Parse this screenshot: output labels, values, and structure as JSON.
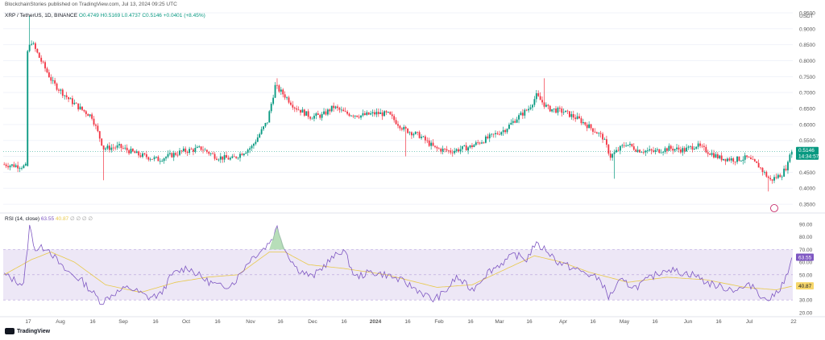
{
  "caption": "BlockchainStories published on TradingView.com, Jul 13, 2024 09:25 UTC",
  "legend": {
    "symbol": "XRP / TetherUS, 1D, BINANCE",
    "open": "O0.4749",
    "high": "H0.5169",
    "low": "L0.4737",
    "close": "C0.5146",
    "change": "+0.0401 (+8.45%)"
  },
  "rsi_legend": {
    "label": "RSI (14, close)",
    "rsi": "63.55",
    "ma": "40.87",
    "extra": "∅ ∅ ∅ ∅"
  },
  "branding": "TradingView",
  "colors": {
    "up": "#089981",
    "down": "#f23645",
    "rsi": "#7e57c2",
    "rsi_ma": "#e8c94a",
    "band": "#ede7f6"
  },
  "chart_data": [
    {
      "type": "candlestick",
      "currency_label": "USDT",
      "ylim": [
        0.33,
        0.96
      ],
      "y_ticks": [
        "0.9500",
        "0.9000",
        "0.8500",
        "0.8000",
        "0.7500",
        "0.7000",
        "0.6500",
        "0.6000",
        "0.5500",
        "0.5000",
        "0.4500",
        "0.4000",
        "0.3500"
      ],
      "last_price_label": "0.5146",
      "countdown_label": "14:34:57",
      "x_ticks": [
        "17",
        "Aug",
        "16",
        "Sep",
        "16",
        "Oct",
        "16",
        "Nov",
        "16",
        "Dec",
        "16",
        "2024",
        "16",
        "Feb",
        "16",
        "Mar",
        "16",
        "Apr",
        "16",
        "May",
        "16",
        "Jun",
        "16",
        "Jul",
        "22"
      ],
      "keypoints": [
        [
          0,
          0.475
        ],
        [
          12,
          0.468
        ],
        [
          13,
          0.83
        ],
        [
          15,
          0.86
        ],
        [
          19,
          0.81
        ],
        [
          26,
          0.73
        ],
        [
          34,
          0.68
        ],
        [
          40,
          0.65
        ],
        [
          46,
          0.625
        ],
        [
          52,
          0.525
        ],
        [
          60,
          0.53
        ],
        [
          70,
          0.505
        ],
        [
          80,
          0.49
        ],
        [
          92,
          0.515
        ],
        [
          102,
          0.525
        ],
        [
          110,
          0.498
        ],
        [
          118,
          0.492
        ],
        [
          128,
          0.53
        ],
        [
          136,
          0.61
        ],
        [
          140,
          0.72
        ],
        [
          145,
          0.69
        ],
        [
          150,
          0.655
        ],
        [
          158,
          0.625
        ],
        [
          164,
          0.628
        ],
        [
          170,
          0.655
        ],
        [
          176,
          0.635
        ],
        [
          184,
          0.628
        ],
        [
          192,
          0.635
        ],
        [
          198,
          0.632
        ],
        [
          206,
          0.585
        ],
        [
          214,
          0.565
        ],
        [
          222,
          0.525
        ],
        [
          230,
          0.516
        ],
        [
          240,
          0.53
        ],
        [
          250,
          0.56
        ],
        [
          258,
          0.585
        ],
        [
          264,
          0.62
        ],
        [
          270,
          0.65
        ],
        [
          274,
          0.69
        ],
        [
          280,
          0.65
        ],
        [
          288,
          0.64
        ],
        [
          296,
          0.615
        ],
        [
          304,
          0.58
        ],
        [
          308,
          0.56
        ],
        [
          312,
          0.5
        ],
        [
          320,
          0.54
        ],
        [
          326,
          0.52
        ],
        [
          334,
          0.515
        ],
        [
          342,
          0.525
        ],
        [
          350,
          0.52
        ],
        [
          356,
          0.535
        ],
        [
          362,
          0.515
        ],
        [
          368,
          0.495
        ],
        [
          376,
          0.49
        ],
        [
          382,
          0.495
        ],
        [
          388,
          0.47
        ],
        [
          394,
          0.425
        ],
        [
          400,
          0.445
        ],
        [
          403,
          0.475
        ],
        [
          404,
          0.5146
        ]
      ],
      "spikes": [
        [
          13,
          "high",
          0.94
        ],
        [
          51,
          "low",
          0.425
        ],
        [
          140,
          "high",
          0.745
        ],
        [
          206,
          "low",
          0.5
        ],
        [
          277,
          "high",
          0.745
        ],
        [
          313,
          "low",
          0.43
        ],
        [
          392,
          "low",
          0.39
        ]
      ]
    },
    {
      "type": "line",
      "title": "RSI (14, close)",
      "ylim": [
        18,
        97
      ],
      "y_ticks": [
        "90.00",
        "80.00",
        "70.00",
        "60.00",
        "50.00",
        "40.00",
        "30.00",
        "20.00"
      ],
      "band": [
        30,
        70
      ],
      "rsi_last": 63.55,
      "ma_last": 40.87,
      "rsi_keypoints": [
        [
          0,
          50
        ],
        [
          10,
          42
        ],
        [
          13,
          88
        ],
        [
          16,
          70
        ],
        [
          22,
          72
        ],
        [
          30,
          55
        ],
        [
          40,
          45
        ],
        [
          50,
          28
        ],
        [
          56,
          35
        ],
        [
          64,
          40
        ],
        [
          74,
          32
        ],
        [
          80,
          34
        ],
        [
          86,
          50
        ],
        [
          94,
          56
        ],
        [
          104,
          45
        ],
        [
          112,
          40
        ],
        [
          118,
          44
        ],
        [
          126,
          62
        ],
        [
          134,
          72
        ],
        [
          138,
          80
        ],
        [
          140,
          88
        ],
        [
          144,
          70
        ],
        [
          150,
          55
        ],
        [
          158,
          48
        ],
        [
          166,
          60
        ],
        [
          174,
          70
        ],
        [
          180,
          48
        ],
        [
          188,
          52
        ],
        [
          196,
          50
        ],
        [
          204,
          45
        ],
        [
          212,
          38
        ],
        [
          220,
          30
        ],
        [
          226,
          36
        ],
        [
          232,
          48
        ],
        [
          240,
          38
        ],
        [
          248,
          52
        ],
        [
          256,
          60
        ],
        [
          262,
          66
        ],
        [
          268,
          62
        ],
        [
          272,
          74
        ],
        [
          278,
          70
        ],
        [
          284,
          60
        ],
        [
          292,
          55
        ],
        [
          300,
          50
        ],
        [
          306,
          46
        ],
        [
          310,
          32
        ],
        [
          316,
          45
        ],
        [
          324,
          40
        ],
        [
          332,
          48
        ],
        [
          340,
          55
        ],
        [
          346,
          52
        ],
        [
          354,
          50
        ],
        [
          360,
          44
        ],
        [
          368,
          40
        ],
        [
          376,
          38
        ],
        [
          384,
          42
        ],
        [
          390,
          30
        ],
        [
          394,
          32
        ],
        [
          398,
          40
        ],
        [
          402,
          50
        ],
        [
          404,
          63.55
        ]
      ],
      "ma_keypoints": [
        [
          0,
          50
        ],
        [
          14,
          62
        ],
        [
          24,
          68
        ],
        [
          36,
          60
        ],
        [
          52,
          42
        ],
        [
          70,
          36
        ],
        [
          88,
          44
        ],
        [
          104,
          48
        ],
        [
          120,
          50
        ],
        [
          136,
          68
        ],
        [
          144,
          68
        ],
        [
          156,
          58
        ],
        [
          174,
          55
        ],
        [
          196,
          50
        ],
        [
          222,
          40
        ],
        [
          240,
          42
        ],
        [
          258,
          55
        ],
        [
          272,
          65
        ],
        [
          286,
          60
        ],
        [
          300,
          52
        ],
        [
          320,
          44
        ],
        [
          340,
          48
        ],
        [
          360,
          46
        ],
        [
          380,
          40
        ],
        [
          396,
          38
        ],
        [
          404,
          40.87
        ]
      ]
    }
  ]
}
